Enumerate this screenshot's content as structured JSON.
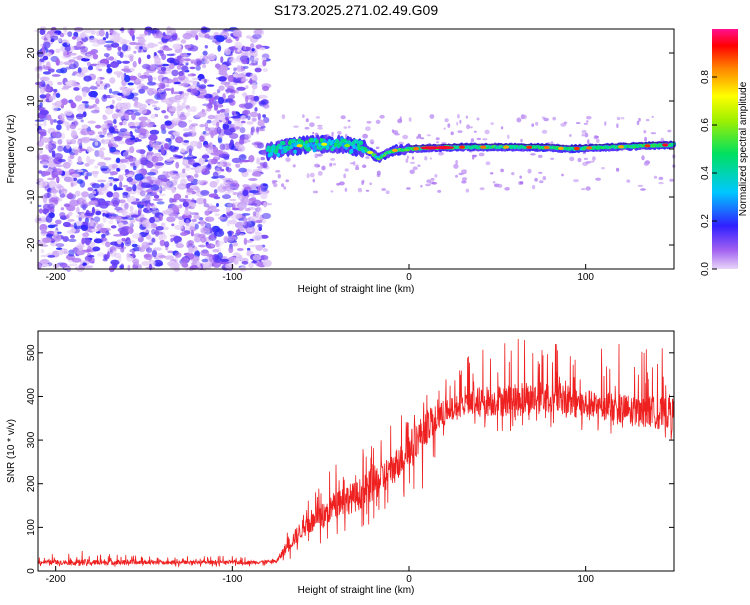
{
  "title": "S173.2025.271.02.49.G09",
  "chart_data": [
    {
      "type": "heatmap",
      "title": "S173.2025.271.02.49.G09",
      "xlabel": "Height of straight line (km)",
      "ylabel": "Frequency (Hz)",
      "xlim": [
        -210,
        150
      ],
      "ylim": [
        -25,
        25
      ],
      "xticks": [
        -200,
        -100,
        0,
        100
      ],
      "yticks": [
        -20,
        -10,
        0,
        10,
        20
      ],
      "grid": false,
      "colorbar": {
        "label": "Normalized spectral amplitude",
        "range": [
          0.0,
          1.0
        ],
        "ticks": [
          0.0,
          0.2,
          0.4,
          0.6,
          0.8
        ],
        "colormap": "rainbow (violet → blue → cyan → green → yellow → red → magenta)"
      },
      "features": {
        "noise_region_x_range": [
          -210,
          -80
        ],
        "noise_amplitude": [
          0.0,
          0.2
        ],
        "signal_start_x": -80,
        "signal_center_frequency": [
          [
            -80,
            -0.5
          ],
          [
            -70,
            0.2
          ],
          [
            -60,
            0.8
          ],
          [
            -50,
            1.0
          ],
          [
            -40,
            1.0
          ],
          [
            -30,
            0.4
          ],
          [
            -25,
            0.0
          ],
          [
            -20,
            -1.2
          ],
          [
            -17,
            -2.0
          ],
          [
            -12,
            -0.8
          ],
          [
            -8,
            -0.3
          ],
          [
            0,
            0.0
          ],
          [
            10,
            0.2
          ],
          [
            30,
            0.4
          ],
          [
            60,
            0.4
          ],
          [
            80,
            0.3
          ],
          [
            90,
            0.0
          ],
          [
            100,
            0.2
          ],
          [
            130,
            0.6
          ],
          [
            150,
            0.9
          ]
        ]
      }
    },
    {
      "type": "line",
      "xlabel": "Height of straight line (km)",
      "ylabel": "SNR (10 * v/v)",
      "xlim": [
        -210,
        150
      ],
      "ylim": [
        0,
        550
      ],
      "xticks": [
        -200,
        -100,
        0,
        100
      ],
      "yticks": [
        0,
        100,
        200,
        300,
        400,
        500
      ],
      "grid": false,
      "color": "#ee2020",
      "series": [
        {
          "name": "SNR",
          "envelope_x": [
            -210,
            -180,
            -150,
            -120,
            -90,
            -75,
            -70,
            -60,
            -50,
            -40,
            -30,
            -20,
            -10,
            0,
            10,
            20,
            30,
            40,
            60,
            80,
            100,
            120,
            150
          ],
          "envelope_low": [
            10,
            10,
            10,
            10,
            10,
            10,
            20,
            40,
            50,
            60,
            60,
            80,
            120,
            150,
            200,
            280,
            320,
            320,
            320,
            330,
            320,
            310,
            300
          ],
          "envelope_high": [
            35,
            50,
            35,
            35,
            35,
            35,
            100,
            170,
            200,
            260,
            260,
            310,
            340,
            380,
            430,
            450,
            480,
            520,
            540,
            540,
            530,
            520,
            510
          ],
          "typical": [
            20,
            20,
            20,
            20,
            20,
            22,
            50,
            100,
            120,
            160,
            170,
            200,
            230,
            280,
            330,
            360,
            380,
            390,
            390,
            400,
            380,
            370,
            360
          ]
        }
      ]
    }
  ]
}
